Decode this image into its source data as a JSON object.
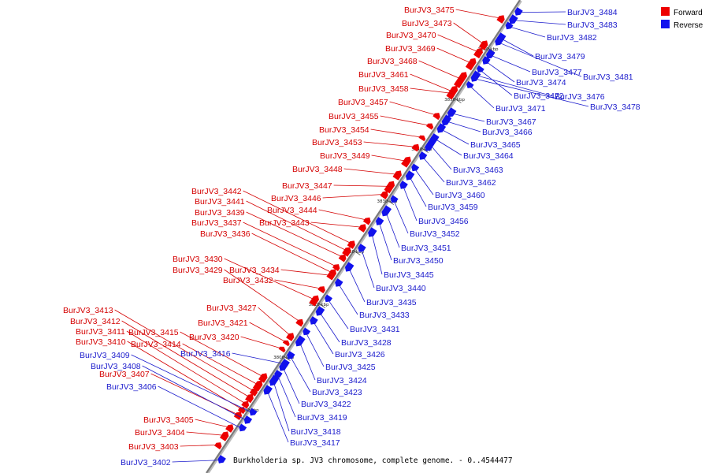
{
  "caption": "Burkholderia sp. JV3 chromosome, complete genome. - 0..4544477",
  "colors": {
    "forward": "#ee0000",
    "reverse": "#1111ee",
    "forward_text": "#d40000",
    "reverse_text": "#1a1acc",
    "axis": "#999999"
  },
  "legend": [
    {
      "label": "Forward",
      "color": "#ee0000"
    },
    {
      "label": "Reverse",
      "color": "#1111ee"
    }
  ],
  "ticks": [
    "3790 kbp",
    "3800 kbp",
    "3810 kbp",
    "3820 kbp",
    "3830 kbp",
    "3840 kbp",
    "3850 kbp",
    "3860 kbp"
  ],
  "forward_genes": [
    "BurJV3_3475",
    "BurJV3_3473",
    "BurJV3_3470",
    "BurJV3_3469",
    "BurJV3_3468",
    "BurJV3_3461",
    "BurJV3_3458",
    "BurJV3_3457",
    "BurJV3_3455",
    "BurJV3_3454",
    "BurJV3_3453",
    "BurJV3_3449",
    "BurJV3_3448",
    "BurJV3_3447",
    "BurJV3_3446",
    "BurJV3_3444",
    "BurJV3_3443",
    "BurJV3_3442",
    "BurJV3_3441",
    "BurJV3_3439",
    "BurJV3_3437",
    "BurJV3_3436",
    "BurJV3_3434",
    "BurJV3_3432",
    "BurJV3_3430",
    "BurJV3_3429",
    "BurJV3_3427",
    "BurJV3_3421",
    "BurJV3_3420",
    "BurJV3_3415",
    "BurJV3_3414",
    "BurJV3_3413",
    "BurJV3_3412",
    "BurJV3_3411",
    "BurJV3_3410",
    "BurJV3_3407",
    "BurJV3_3405",
    "BurJV3_3404",
    "BurJV3_3403"
  ],
  "reverse_genes": [
    "BurJV3_3484",
    "BurJV3_3483",
    "BurJV3_3482",
    "BurJV3_3479",
    "BurJV3_3481",
    "BurJV3_3477",
    "BurJV3_3474",
    "BurJV3_3472",
    "BurJV3_3476",
    "BurJV3_3471",
    "BurJV3_3478",
    "BurJV3_3467",
    "BurJV3_3466",
    "BurJV3_3465",
    "BurJV3_3464",
    "BurJV3_3463",
    "BurJV3_3462",
    "BurJV3_3460",
    "BurJV3_3459",
    "BurJV3_3456",
    "BurJV3_3452",
    "BurJV3_3451",
    "BurJV3_3450",
    "BurJV3_3445",
    "BurJV3_3440",
    "BurJV3_3435",
    "BurJV3_3433",
    "BurJV3_3431",
    "BurJV3_3428",
    "BurJV3_3426",
    "BurJV3_3425",
    "BurJV3_3424",
    "BurJV3_3423",
    "BurJV3_3422",
    "BurJV3_3419",
    "BurJV3_3418",
    "BurJV3_3417",
    "BurJV3_3416",
    "BurJV3_3409",
    "BurJV3_3408",
    "BurJV3_3406",
    "BurJV3_3402"
  ]
}
